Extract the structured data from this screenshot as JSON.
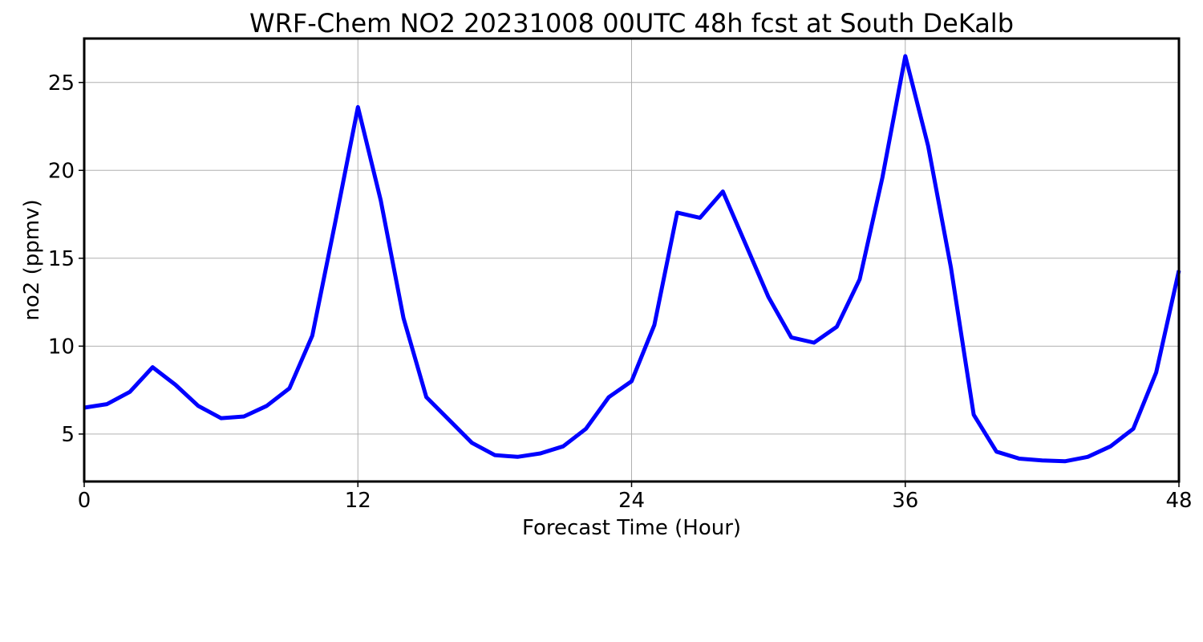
{
  "chart_data": {
    "type": "line",
    "title": "WRF-Chem NO2  20231008 00UTC 48h fcst at South DeKalb",
    "xlabel": "Forecast Time (Hour)",
    "ylabel": "no2  (ppmv)",
    "xlim": [
      0,
      48
    ],
    "ylim": [
      2.3,
      27.5
    ],
    "xticks": [
      0,
      12,
      24,
      36,
      48
    ],
    "yticks": [
      5,
      10,
      15,
      20,
      25
    ],
    "grid": true,
    "legend": false,
    "series": [
      {
        "color": "#0000ff",
        "x": [
          0,
          1,
          2,
          3,
          4,
          5,
          6,
          7,
          8,
          9,
          10,
          11,
          12,
          13,
          14,
          15,
          16,
          17,
          18,
          19,
          20,
          21,
          22,
          23,
          24,
          25,
          26,
          27,
          28,
          29,
          30,
          31,
          32,
          33,
          34,
          35,
          36,
          37,
          38,
          39,
          40,
          41,
          42,
          43,
          44,
          45,
          46,
          47,
          48
        ],
        "values": [
          6.5,
          6.7,
          7.4,
          8.8,
          7.8,
          6.6,
          5.9,
          6.0,
          6.6,
          7.6,
          10.6,
          17.0,
          23.6,
          18.3,
          11.6,
          7.1,
          5.8,
          4.5,
          3.8,
          3.7,
          3.9,
          4.3,
          5.3,
          7.1,
          8.0,
          11.2,
          17.6,
          17.3,
          18.8,
          15.8,
          12.8,
          10.5,
          10.2,
          11.1,
          13.8,
          19.6,
          26.5,
          21.4,
          14.5,
          6.1,
          4.0,
          3.6,
          3.5,
          3.45,
          3.7,
          4.3,
          5.3,
          8.5,
          14.3
        ]
      }
    ]
  }
}
